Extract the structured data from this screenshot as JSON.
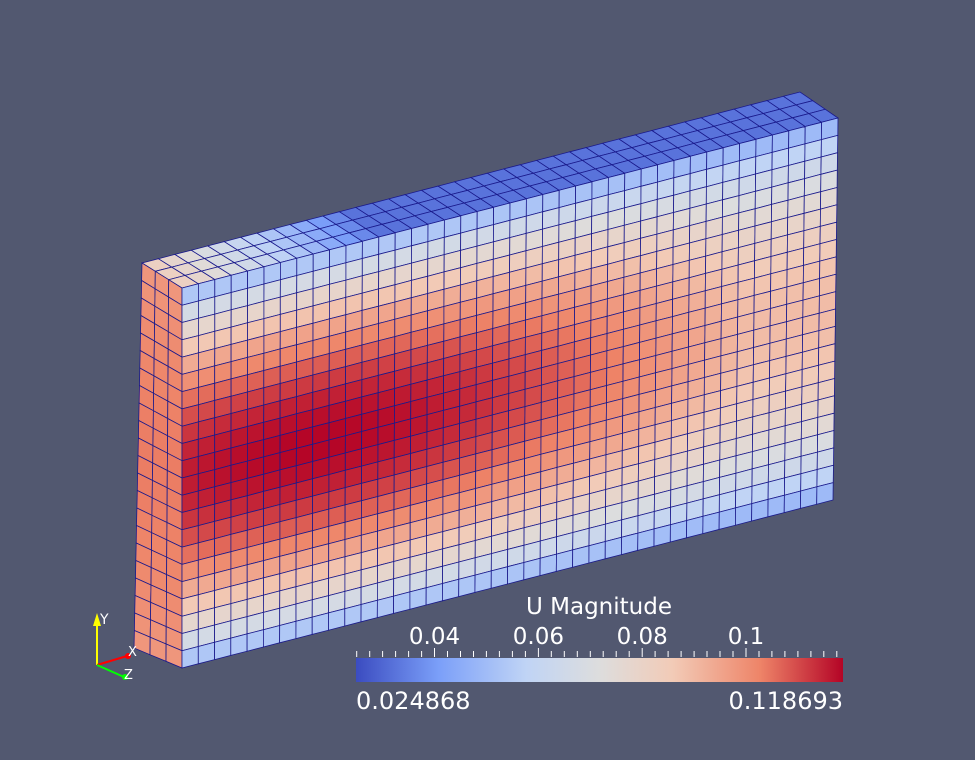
{
  "scalar_bar": {
    "title": "U Magnitude",
    "range_min_label": "0.024868",
    "range_max_label": "0.118693",
    "range": [
      0.024868,
      0.118693
    ],
    "tick_labels": [
      "0.04",
      "0.06",
      "0.08",
      "0.1"
    ],
    "tick_values": [
      0.04,
      0.06,
      0.08,
      0.1
    ],
    "colormap": [
      "#3b4cc0",
      "#7b9ff9",
      "#c0d4f5",
      "#dddddd",
      "#f2cbb7",
      "#ee8468",
      "#b40426"
    ]
  },
  "orientation_axes": {
    "y_label": "Y",
    "x_label": "X",
    "z_label": "Z",
    "y_color": "#ffff00",
    "x_color": "#ff0000",
    "z_color": "#00ff00"
  },
  "mesh": {
    "front_columns": 40,
    "front_rows": 22,
    "depth_cells": 3,
    "edge_color": "#1a1a8c"
  },
  "background_color": "#525870"
}
